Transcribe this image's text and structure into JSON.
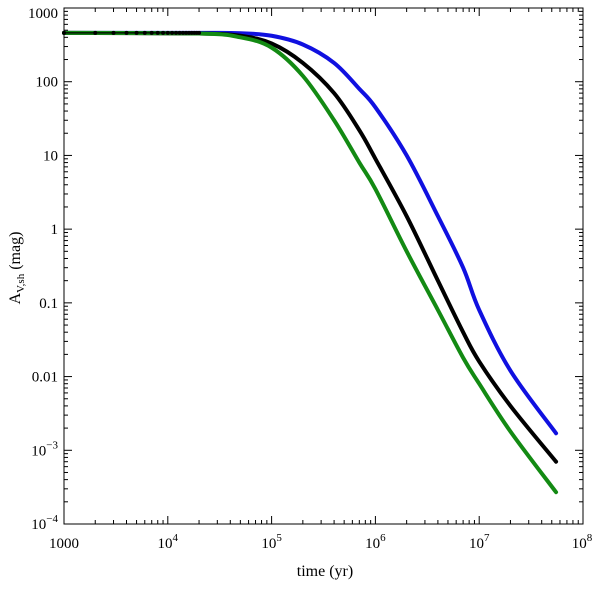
{
  "chart_data": {
    "type": "line",
    "xlabel": "time (yr)",
    "ylabel": {
      "base": "A",
      "subscript": "V,sh",
      "suffix": " (mag)"
    },
    "xscale": "log",
    "yscale": "log",
    "xlim": [
      1000,
      100000000
    ],
    "ylim": [
      0.0001,
      1000
    ],
    "grid": false,
    "x_ticks": [
      {
        "value": 1000,
        "label": "1000"
      },
      {
        "value": 10000,
        "base": "10",
        "exp": "4"
      },
      {
        "value": 100000,
        "base": "10",
        "exp": "5"
      },
      {
        "value": 1000000,
        "base": "10",
        "exp": "6"
      },
      {
        "value": 10000000,
        "base": "10",
        "exp": "7"
      },
      {
        "value": 100000000,
        "base": "10",
        "exp": "8"
      }
    ],
    "y_ticks": [
      {
        "value": 1000,
        "label": "1000"
      },
      {
        "value": 100,
        "label": "100"
      },
      {
        "value": 10,
        "label": "10"
      },
      {
        "value": 1,
        "label": "1"
      },
      {
        "value": 0.1,
        "label": "0.1"
      },
      {
        "value": 0.01,
        "label": "0.01"
      },
      {
        "value": 0.001,
        "base": "10",
        "exp": "−3"
      },
      {
        "value": 0.0001,
        "base": "10",
        "exp": "−4"
      }
    ],
    "series": [
      {
        "color": "#1010e0",
        "points": [
          [
            1000,
            460
          ],
          [
            20000,
            460
          ],
          [
            50000,
            455
          ],
          [
            100000,
            420
          ],
          [
            200000,
            320
          ],
          [
            400000,
            180
          ],
          [
            700000,
            80
          ],
          [
            1000000,
            45
          ],
          [
            2000000,
            10
          ],
          [
            4000000,
            1.5
          ],
          [
            7000000,
            0.3
          ],
          [
            10000000,
            0.08
          ],
          [
            20000000,
            0.012
          ],
          [
            55000000,
            0.0017
          ]
        ]
      },
      {
        "color": "#000000",
        "points": [
          [
            1000,
            460
          ],
          [
            20000,
            450
          ],
          [
            50000,
            420
          ],
          [
            100000,
            330
          ],
          [
            200000,
            180
          ],
          [
            400000,
            70
          ],
          [
            700000,
            22
          ],
          [
            1000000,
            9
          ],
          [
            2000000,
            1.5
          ],
          [
            4000000,
            0.2
          ],
          [
            7000000,
            0.04
          ],
          [
            10000000,
            0.016
          ],
          [
            20000000,
            0.004
          ],
          [
            55000000,
            0.0007
          ]
        ]
      },
      {
        "color": "#138a13",
        "points": [
          [
            1000,
            460
          ],
          [
            20000,
            450
          ],
          [
            50000,
            400
          ],
          [
            100000,
            290
          ],
          [
            200000,
            120
          ],
          [
            400000,
            30
          ],
          [
            700000,
            8
          ],
          [
            1000000,
            3.5
          ],
          [
            2000000,
            0.5
          ],
          [
            4000000,
            0.08
          ],
          [
            7000000,
            0.018
          ],
          [
            10000000,
            0.008
          ],
          [
            20000000,
            0.0018
          ],
          [
            55000000,
            0.00027
          ]
        ]
      }
    ],
    "marker_points": [
      [
        1000,
        460
      ],
      [
        2000,
        460
      ],
      [
        3000,
        460
      ],
      [
        4000,
        460
      ],
      [
        5000,
        460
      ],
      [
        6000,
        460
      ],
      [
        7000,
        460
      ],
      [
        8000,
        460
      ],
      [
        9000,
        460
      ],
      [
        10000,
        460
      ],
      [
        11000,
        460
      ],
      [
        12000,
        460
      ],
      [
        13000,
        460
      ],
      [
        14000,
        460
      ],
      [
        15000,
        460
      ],
      [
        16000,
        460
      ],
      [
        17000,
        460
      ],
      [
        18000,
        460
      ],
      [
        19000,
        460
      ],
      [
        20000,
        460
      ]
    ]
  }
}
